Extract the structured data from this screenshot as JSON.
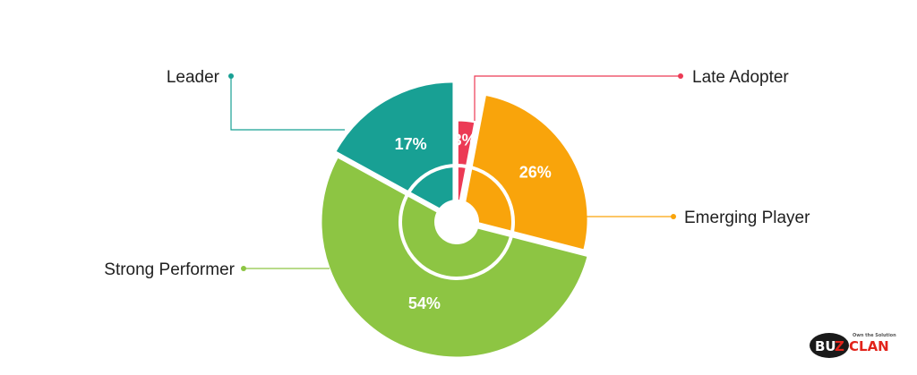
{
  "chart_data": {
    "type": "pie",
    "title": "",
    "legend_placement": "around",
    "slices": [
      {
        "label": "Late Adopter",
        "value": 3,
        "value_label": "3%",
        "color": "#ec3a55"
      },
      {
        "label": "Emerging Player",
        "value": 26,
        "value_label": "26%",
        "color": "#f9a40b"
      },
      {
        "label": "Strong Performer",
        "value": 54,
        "value_label": "54%",
        "color": "#8dc543"
      },
      {
        "label": "Leader",
        "value": 17,
        "value_label": "17%",
        "color": "#18a094"
      }
    ]
  },
  "logo": {
    "name": "BUZZCLAN",
    "part1": "BU",
    "part2": "Z",
    "part3": "CLAN",
    "tagline": "Own the Solution",
    "colors": {
      "dark": "#1a1a1a",
      "accent": "#e2231a"
    }
  }
}
